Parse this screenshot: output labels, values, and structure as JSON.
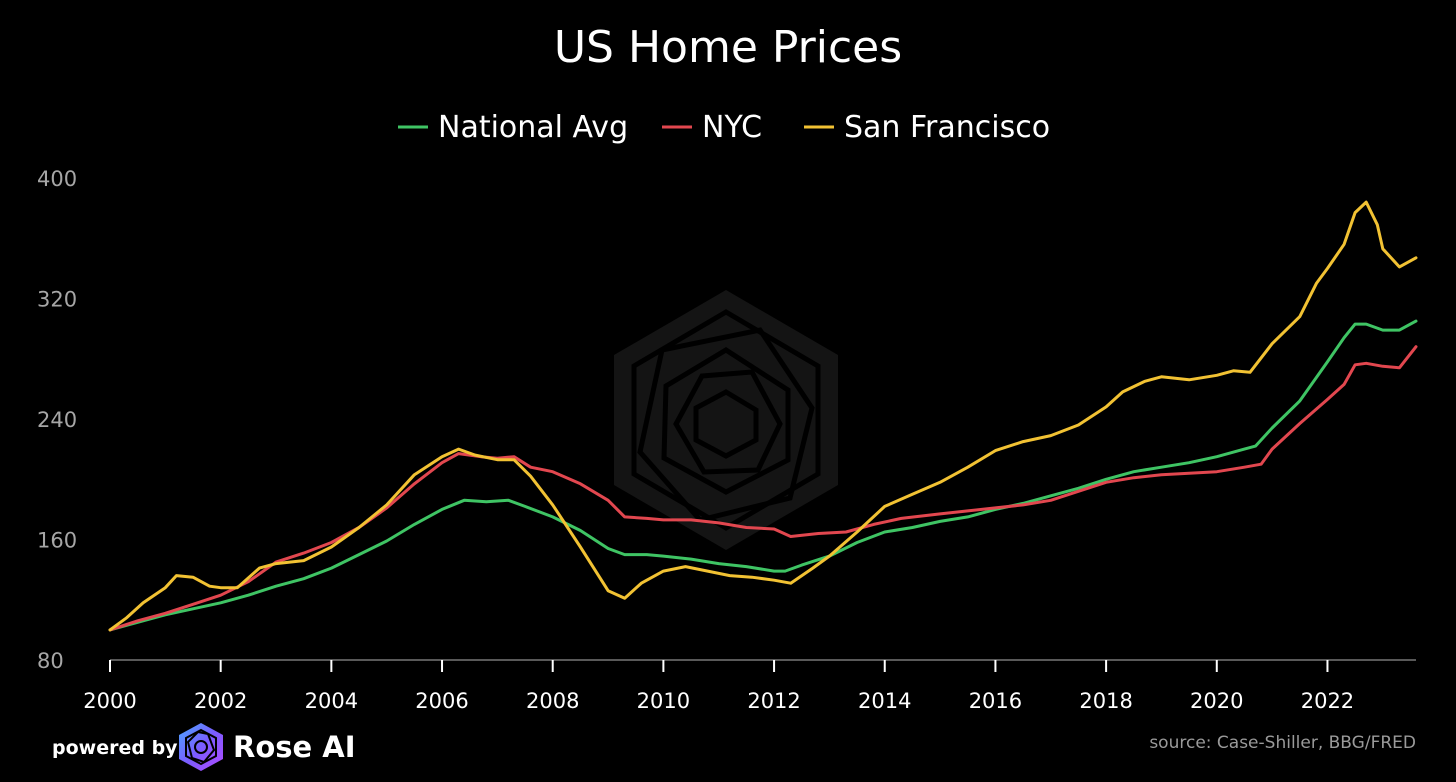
{
  "chart_data": {
    "type": "line",
    "title": "US Home Prices",
    "ylim": [
      80,
      400
    ],
    "yticks": [
      80,
      160,
      240,
      320,
      400
    ],
    "xlim": [
      2000,
      2023.6
    ],
    "xticks": [
      2000,
      2002,
      2004,
      2006,
      2008,
      2010,
      2012,
      2014,
      2016,
      2018,
      2020,
      2022
    ],
    "grid": false,
    "legend_position": "top-center",
    "series": [
      {
        "name": "National Avg",
        "color": "#3fc464",
        "points": [
          [
            2000.0,
            100
          ],
          [
            2000.5,
            105
          ],
          [
            2001.0,
            110
          ],
          [
            2001.5,
            114
          ],
          [
            2002.0,
            118
          ],
          [
            2002.5,
            123
          ],
          [
            2003.0,
            129
          ],
          [
            2003.5,
            134
          ],
          [
            2004.0,
            141
          ],
          [
            2004.5,
            150
          ],
          [
            2005.0,
            159
          ],
          [
            2005.5,
            170
          ],
          [
            2006.0,
            180
          ],
          [
            2006.4,
            186
          ],
          [
            2006.8,
            185
          ],
          [
            2007.2,
            186
          ],
          [
            2007.5,
            182
          ],
          [
            2008.0,
            175
          ],
          [
            2008.5,
            166
          ],
          [
            2009.0,
            154
          ],
          [
            2009.3,
            150
          ],
          [
            2009.7,
            150
          ],
          [
            2010.0,
            149
          ],
          [
            2010.5,
            147
          ],
          [
            2011.0,
            144
          ],
          [
            2011.5,
            142
          ],
          [
            2012.0,
            139
          ],
          [
            2012.2,
            139
          ],
          [
            2012.5,
            143
          ],
          [
            2013.0,
            149
          ],
          [
            2013.5,
            158
          ],
          [
            2014.0,
            165
          ],
          [
            2014.5,
            168
          ],
          [
            2015.0,
            172
          ],
          [
            2015.5,
            175
          ],
          [
            2016.0,
            180
          ],
          [
            2016.5,
            184
          ],
          [
            2017.0,
            189
          ],
          [
            2017.5,
            194
          ],
          [
            2018.0,
            200
          ],
          [
            2018.5,
            205
          ],
          [
            2019.0,
            208
          ],
          [
            2019.5,
            211
          ],
          [
            2020.0,
            215
          ],
          [
            2020.5,
            220
          ],
          [
            2020.7,
            222
          ],
          [
            2021.0,
            234
          ],
          [
            2021.5,
            252
          ],
          [
            2022.0,
            278
          ],
          [
            2022.3,
            294
          ],
          [
            2022.5,
            303
          ],
          [
            2022.7,
            303
          ],
          [
            2023.0,
            299
          ],
          [
            2023.3,
            299
          ],
          [
            2023.6,
            305
          ]
        ]
      },
      {
        "name": "NYC",
        "color": "#e2474f",
        "points": [
          [
            2000.0,
            100
          ],
          [
            2000.5,
            106
          ],
          [
            2001.0,
            111
          ],
          [
            2001.5,
            117
          ],
          [
            2002.0,
            123
          ],
          [
            2002.5,
            132
          ],
          [
            2003.0,
            145
          ],
          [
            2003.5,
            151
          ],
          [
            2004.0,
            158
          ],
          [
            2004.5,
            168
          ],
          [
            2005.0,
            181
          ],
          [
            2005.5,
            197
          ],
          [
            2006.0,
            211
          ],
          [
            2006.3,
            217
          ],
          [
            2006.7,
            215
          ],
          [
            2007.0,
            214
          ],
          [
            2007.3,
            215
          ],
          [
            2007.6,
            208
          ],
          [
            2008.0,
            205
          ],
          [
            2008.5,
            197
          ],
          [
            2009.0,
            186
          ],
          [
            2009.3,
            175
          ],
          [
            2009.7,
            174
          ],
          [
            2010.0,
            173
          ],
          [
            2010.5,
            173
          ],
          [
            2011.0,
            171
          ],
          [
            2011.5,
            168
          ],
          [
            2012.0,
            167
          ],
          [
            2012.3,
            162
          ],
          [
            2012.8,
            164
          ],
          [
            2013.3,
            165
          ],
          [
            2013.8,
            170
          ],
          [
            2014.3,
            174
          ],
          [
            2015.0,
            177
          ],
          [
            2015.5,
            179
          ],
          [
            2016.0,
            181
          ],
          [
            2016.5,
            183
          ],
          [
            2017.0,
            186
          ],
          [
            2017.5,
            192
          ],
          [
            2018.0,
            198
          ],
          [
            2018.5,
            201
          ],
          [
            2019.0,
            203
          ],
          [
            2019.5,
            204
          ],
          [
            2020.0,
            205
          ],
          [
            2020.5,
            208
          ],
          [
            2020.8,
            210
          ],
          [
            2021.0,
            220
          ],
          [
            2021.5,
            237
          ],
          [
            2022.0,
            253
          ],
          [
            2022.3,
            263
          ],
          [
            2022.5,
            276
          ],
          [
            2022.7,
            277
          ],
          [
            2023.0,
            275
          ],
          [
            2023.3,
            274
          ],
          [
            2023.6,
            288
          ]
        ]
      },
      {
        "name": "San Francisco",
        "color": "#f2c233",
        "points": [
          [
            2000.0,
            100
          ],
          [
            2000.3,
            108
          ],
          [
            2000.6,
            118
          ],
          [
            2001.0,
            128
          ],
          [
            2001.2,
            136
          ],
          [
            2001.5,
            135
          ],
          [
            2001.8,
            129
          ],
          [
            2002.0,
            128
          ],
          [
            2002.3,
            128
          ],
          [
            2002.7,
            141
          ],
          [
            2003.0,
            144
          ],
          [
            2003.5,
            146
          ],
          [
            2004.0,
            155
          ],
          [
            2004.5,
            168
          ],
          [
            2005.0,
            183
          ],
          [
            2005.5,
            203
          ],
          [
            2006.0,
            215
          ],
          [
            2006.3,
            220
          ],
          [
            2006.6,
            216
          ],
          [
            2007.0,
            213
          ],
          [
            2007.3,
            213
          ],
          [
            2007.6,
            202
          ],
          [
            2008.0,
            183
          ],
          [
            2008.5,
            155
          ],
          [
            2009.0,
            126
          ],
          [
            2009.3,
            121
          ],
          [
            2009.6,
            131
          ],
          [
            2010.0,
            139
          ],
          [
            2010.4,
            142
          ],
          [
            2010.8,
            139
          ],
          [
            2011.2,
            136
          ],
          [
            2011.6,
            135
          ],
          [
            2012.0,
            133
          ],
          [
            2012.3,
            131
          ],
          [
            2012.7,
            141
          ],
          [
            2013.0,
            149
          ],
          [
            2013.5,
            165
          ],
          [
            2014.0,
            182
          ],
          [
            2014.5,
            190
          ],
          [
            2015.0,
            198
          ],
          [
            2015.5,
            208
          ],
          [
            2016.0,
            219
          ],
          [
            2016.5,
            225
          ],
          [
            2017.0,
            229
          ],
          [
            2017.5,
            236
          ],
          [
            2018.0,
            248
          ],
          [
            2018.3,
            258
          ],
          [
            2018.7,
            265
          ],
          [
            2019.0,
            268
          ],
          [
            2019.5,
            266
          ],
          [
            2020.0,
            269
          ],
          [
            2020.3,
            272
          ],
          [
            2020.6,
            271
          ],
          [
            2021.0,
            290
          ],
          [
            2021.5,
            308
          ],
          [
            2021.8,
            330
          ],
          [
            2022.0,
            340
          ],
          [
            2022.3,
            356
          ],
          [
            2022.5,
            377
          ],
          [
            2022.7,
            384
          ],
          [
            2022.9,
            369
          ],
          [
            2023.0,
            353
          ],
          [
            2023.3,
            341
          ],
          [
            2023.6,
            347
          ]
        ]
      }
    ]
  },
  "footer": {
    "powered_by": "powered by",
    "brand": "Rose AI",
    "logo_icon": "rose-ai-hexagon-icon",
    "source": "source: Case-Shiller, BBG/FRED"
  },
  "watermark_icon": "rose-ai-hexagon-watermark"
}
